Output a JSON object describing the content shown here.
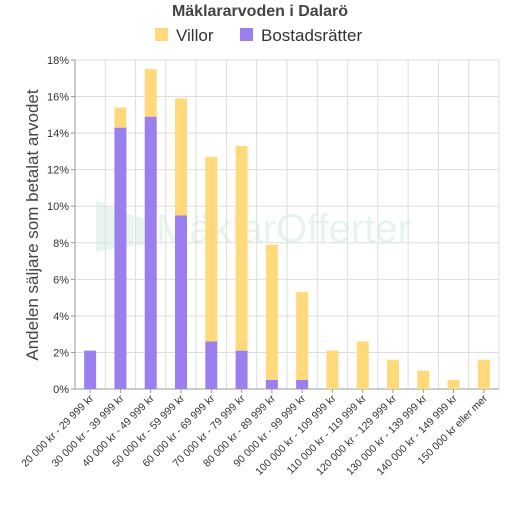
{
  "chart_data": {
    "type": "bar",
    "stacked": true,
    "title": "Mäklararvoden i Dalarö",
    "ylabel": "Andelen säljare som betalat arvodet",
    "xlabel": "",
    "ylim": [
      0,
      18
    ],
    "yticks": [
      "0%",
      "2%",
      "4%",
      "6%",
      "8%",
      "10%",
      "12%",
      "14%",
      "16%",
      "18%"
    ],
    "grid": true,
    "legend_position": "top",
    "categories": [
      "20 000 kr - 29 999 kr",
      "30 000 kr - 39 999 kr",
      "40 000 kr - 49 999 kr",
      "50 000 kr - 59 999 kr",
      "60 000 kr - 69 999 kr",
      "70 000 kr - 79 999 kr",
      "80 000 kr - 89 999 kr",
      "90 000 kr - 99 999 kr",
      "100 000 kr - 109 999 kr",
      "110 000 kr - 119 999 kr",
      "120 000 kr - 129 999 kr",
      "130 000 kr - 139 999 kr",
      "140 000 kr - 149 999 kr",
      "150 000 kr eller mer"
    ],
    "series": [
      {
        "name": "Bostadsrätter",
        "color": "#9b7fef",
        "values": [
          2.1,
          14.3,
          14.9,
          9.5,
          2.6,
          2.1,
          0.5,
          0.5,
          0,
          0,
          0,
          0,
          0,
          0
        ]
      },
      {
        "name": "Villor",
        "color": "#ffd97a",
        "values": [
          0,
          1.1,
          2.6,
          6.4,
          10.1,
          11.2,
          7.4,
          4.8,
          2.1,
          2.6,
          1.6,
          1.0,
          0.5,
          1.6
        ]
      }
    ],
    "legend_order": [
      "Villor",
      "Bostadsrätter"
    ]
  },
  "watermark": {
    "text": "MäklarOfferter"
  }
}
